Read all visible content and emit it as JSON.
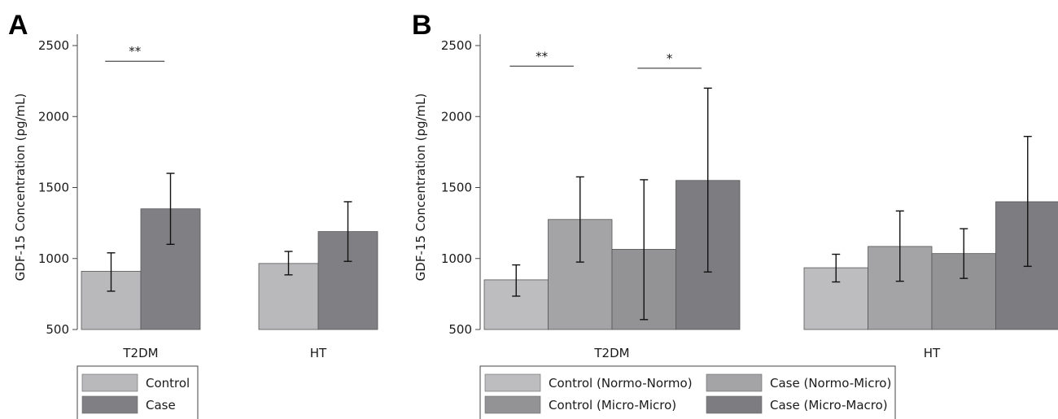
{
  "colors": {
    "control": "#b9b9bb",
    "case": "#808084",
    "normo_normo": "#bdbdbf",
    "normo_micro": "#a4a4a7",
    "micro_micro": "#939396",
    "micro_macro": "#7d7d81",
    "axis": "#444444"
  },
  "chart_data": [
    {
      "panel": "A",
      "type": "bar",
      "ylabel": "GDF-15 Concentration (pg/mL)",
      "ylim": [
        500,
        2500
      ],
      "yticks": [
        500,
        1000,
        1500,
        2000,
        2500
      ],
      "categories": [
        "T2DM",
        "HT"
      ],
      "series": [
        {
          "name": "Control",
          "values": [
            910,
            965
          ],
          "err_low": [
            770,
            885
          ],
          "err_high": [
            1040,
            1050
          ],
          "color_key": "control"
        },
        {
          "name": "Case",
          "values": [
            1350,
            1190
          ],
          "err_low": [
            1100,
            980
          ],
          "err_high": [
            1600,
            1400
          ],
          "color_key": "case"
        }
      ],
      "significance": [
        {
          "label": "**",
          "category": 0,
          "from_series": 0,
          "to_series": 1,
          "y": 2390
        }
      ]
    },
    {
      "panel": "B",
      "type": "bar",
      "ylabel": "GDF-15 Concentration (pg/mL)",
      "ylim": [
        500,
        2500
      ],
      "yticks": [
        500,
        1000,
        1500,
        2000,
        2500
      ],
      "categories": [
        "T2DM",
        "HT"
      ],
      "series": [
        {
          "name": "Control (Normo-Normo)",
          "values": [
            850,
            935
          ],
          "err_low": [
            735,
            835
          ],
          "err_high": [
            955,
            1030
          ],
          "color_key": "normo_normo"
        },
        {
          "name": "Case (Normo-Micro)",
          "values": [
            1275,
            1085
          ],
          "err_low": [
            975,
            840
          ],
          "err_high": [
            1575,
            1335
          ],
          "color_key": "normo_micro"
        },
        {
          "name": "Control (Micro-Micro)",
          "values": [
            1065,
            1035
          ],
          "err_low": [
            570,
            860
          ],
          "err_high": [
            1555,
            1210
          ],
          "color_key": "micro_micro"
        },
        {
          "name": "Case (Micro-Macro)",
          "values": [
            1550,
            1400
          ],
          "err_low": [
            905,
            945
          ],
          "err_high": [
            2200,
            1860
          ],
          "color_key": "micro_macro"
        }
      ],
      "significance": [
        {
          "label": "**",
          "category": 0,
          "from_series": 0,
          "to_series": 1,
          "y": 2355
        },
        {
          "label": "*",
          "category": 0,
          "from_series": 2,
          "to_series": 3,
          "y": 2340
        }
      ]
    }
  ]
}
